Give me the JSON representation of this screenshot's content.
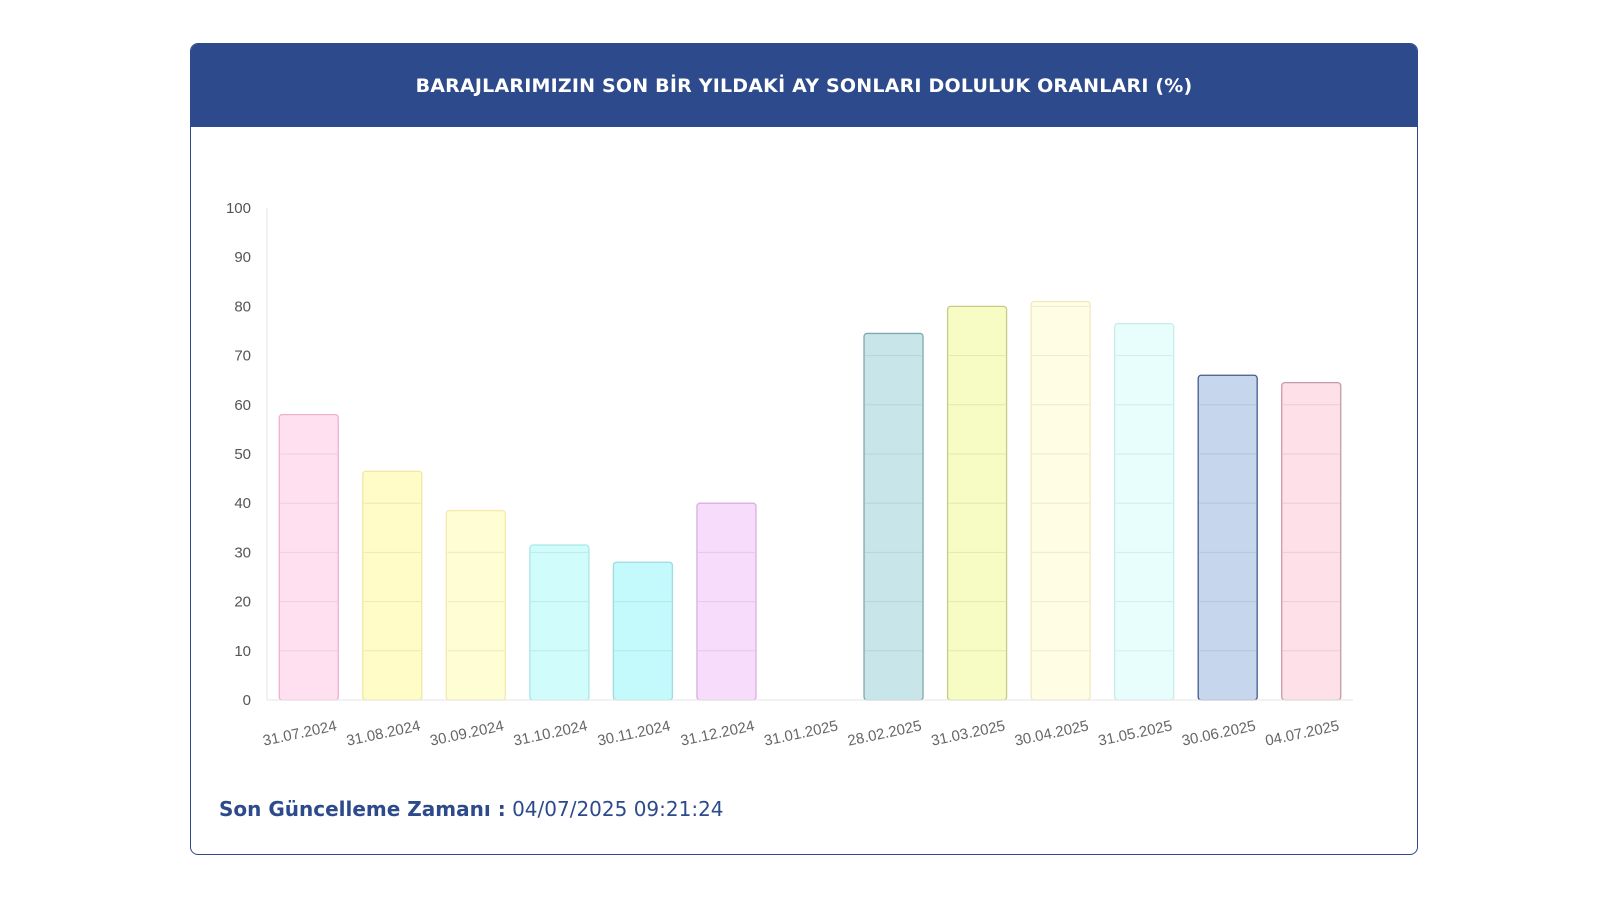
{
  "header": {
    "title": "BARAJLARIMIZIN SON BİR YILDAKİ AY SONLARI DOLULUK ORANLARI (%)"
  },
  "footer": {
    "label": "Son Güncelleme Zamanı :",
    "value": "04/07/2025 09:21:24"
  },
  "chart_data": {
    "type": "bar",
    "categories": [
      "31.07.2024",
      "31.08.2024",
      "30.09.2024",
      "31.10.2024",
      "30.11.2024",
      "31.12.2024",
      "31.01.2025",
      "28.02.2025",
      "31.03.2025",
      "30.04.2025",
      "31.05.2025",
      "30.06.2025",
      "04.07.2025"
    ],
    "values": [
      58,
      46.5,
      38.5,
      31.5,
      28,
      40,
      0,
      74.5,
      80,
      81,
      76.5,
      66,
      64.5
    ],
    "colors": [
      "#ffe0f0",
      "#fffcc8",
      "#fffdd4",
      "#d0fcfc",
      "#c4fafb",
      "#f7dcfb",
      "#ffffff",
      "#c8e6ea",
      "#f6fcc4",
      "#fffde4",
      "#e8fefd",
      "#c6d6ec",
      "#fde0e8"
    ],
    "borders": [
      "#f0b0cc",
      "#f2e6a0",
      "#f2eab0",
      "#a8e6e6",
      "#9cdbe0",
      "#d8b0e0",
      "#e0e0e0",
      "#7fa8b0",
      "#c4cc88",
      "#eeeac0",
      "#c8ecec",
      "#445a8a",
      "#c89aa8"
    ],
    "ylim": [
      0,
      100
    ],
    "yticks": [
      0,
      10,
      20,
      30,
      40,
      50,
      60,
      70,
      80,
      90,
      100
    ],
    "grid": true,
    "title": "BARAJLARIMIZIN SON BİR YILDAKİ AY SONLARI DOLULUK ORANLARI (%)",
    "xlabel": "",
    "ylabel": ""
  }
}
